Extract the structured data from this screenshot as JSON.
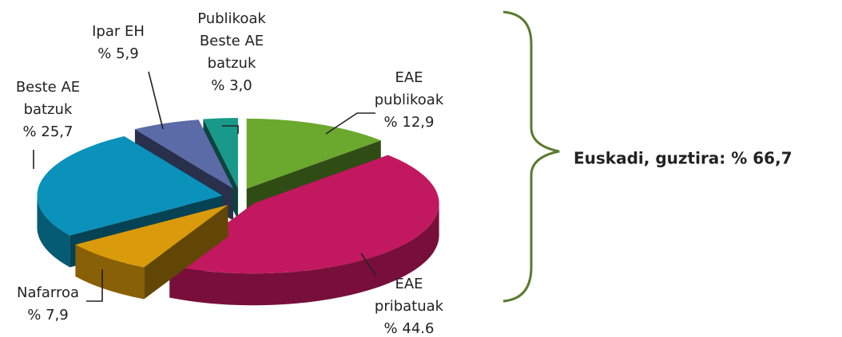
{
  "chart_data": {
    "type": "pie3d",
    "categories": [
      "EAE\npublikoak",
      "EAE\npribatuak",
      "Nafarroa",
      "Beste AE\nbatzuk",
      "Ipar EH",
      "Publikoak\nBeste AE\nbatzuk"
    ],
    "values": [
      12.9,
      44.6,
      7.9,
      25.7,
      5.9,
      3.0
    ],
    "value_labels": [
      "% 12,9",
      "% 44.6",
      "% 7,9",
      "% 25,7",
      "% 5,9",
      "% 3,0"
    ],
    "colors": [
      "#6aa82e",
      "#c2185f",
      "#d99b0c",
      "#0a92bb",
      "#5b6ba8",
      "#18998a"
    ],
    "annotation": "Euskadi, guztira: % 66,7"
  }
}
